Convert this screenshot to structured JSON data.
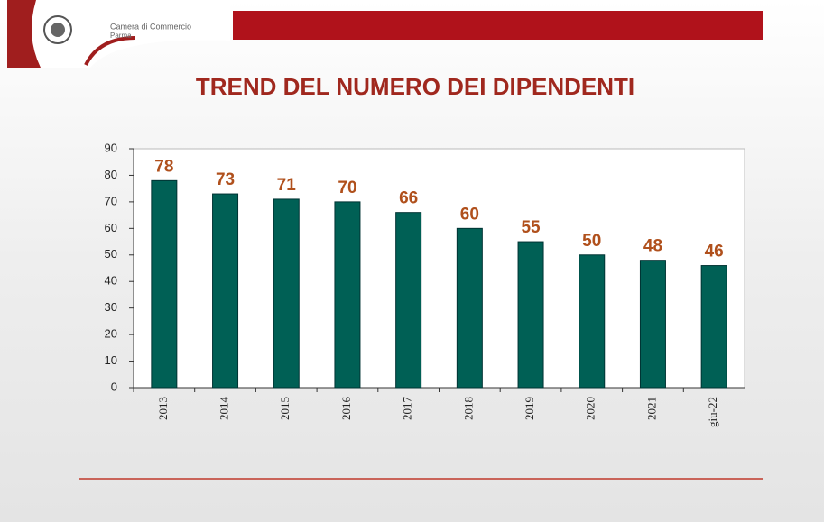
{
  "header": {
    "org": "Camera di Commercio",
    "city": "Parma"
  },
  "chart_data": {
    "type": "bar",
    "title": "TREND DEL NUMERO DEI DIPENDENTI",
    "categories": [
      "2013",
      "2014",
      "2015",
      "2016",
      "2017",
      "2018",
      "2019",
      "2020",
      "2021",
      "giu-22"
    ],
    "values": [
      78,
      73,
      71,
      70,
      66,
      60,
      55,
      50,
      48,
      46
    ],
    "color": "#006055",
    "label_color": "#b0501c",
    "ylim": [
      0,
      90
    ],
    "yticks": [
      0,
      10,
      20,
      30,
      40,
      50,
      60,
      70,
      80,
      90
    ],
    "grid": false
  }
}
